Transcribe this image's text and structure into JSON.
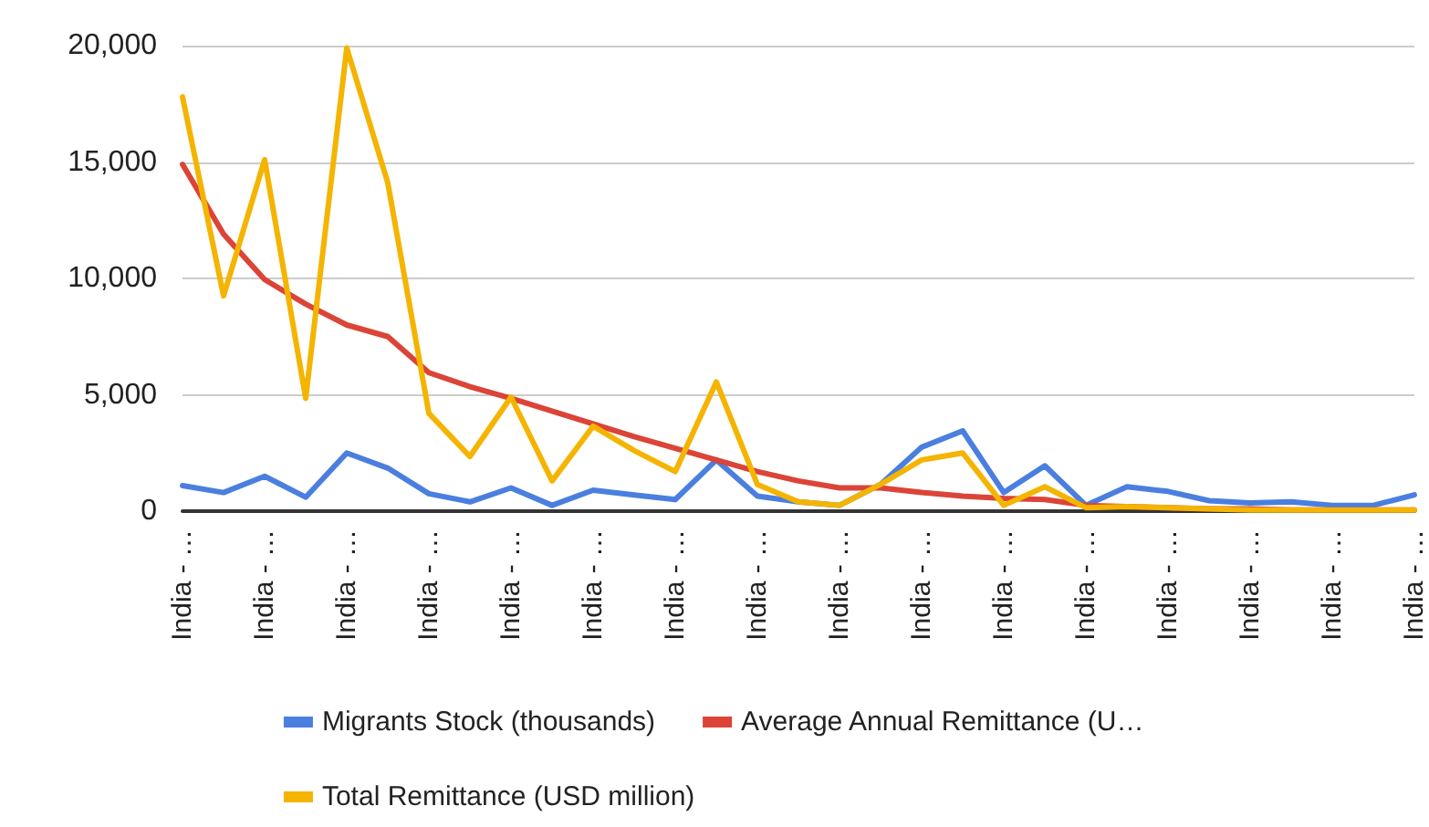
{
  "chart_data": {
    "type": "line",
    "categories": [
      "India - …",
      null,
      "India - …",
      null,
      "India - …",
      null,
      "India - …",
      null,
      "India - …",
      null,
      "India - …",
      null,
      "India - …",
      null,
      "India - …",
      null,
      "India - …",
      null,
      "India - …",
      null,
      "India - …",
      null,
      "India - …",
      null,
      "India - …",
      null,
      "India - …",
      null,
      "India - …",
      null,
      "India - …"
    ],
    "series": [
      {
        "name": "Migrants Stock (thousands)",
        "color": "#4a7fe0",
        "values": [
          1100,
          800,
          1500,
          600,
          2500,
          1850,
          750,
          400,
          1000,
          250,
          900,
          700,
          500,
          2200,
          650,
          400,
          250,
          1150,
          2750,
          3450,
          800,
          1950,
          250,
          1050,
          850,
          450,
          350,
          400,
          250,
          250,
          700
        ]
      },
      {
        "name": "Average Annual Remittance (U…",
        "color": "#db4437",
        "values": [
          14900,
          11900,
          9950,
          8900,
          8000,
          7500,
          5950,
          5350,
          4850,
          4300,
          3750,
          3200,
          2700,
          2200,
          1700,
          1300,
          1000,
          1000,
          800,
          650,
          550,
          500,
          250,
          200,
          150,
          100,
          100,
          50,
          50,
          50,
          50
        ]
      },
      {
        "name": "Total Remittance (USD million)",
        "color": "#f4b400",
        "values": [
          17800,
          9250,
          15100,
          4850,
          19900,
          14100,
          4200,
          2350,
          4900,
          1300,
          3650,
          2600,
          1700,
          5550,
          1150,
          400,
          250,
          1150,
          2200,
          2500,
          250,
          1050,
          150,
          200,
          150,
          100,
          50,
          50,
          50,
          50,
          50
        ]
      }
    ],
    "ylim": [
      0,
      20000
    ],
    "yticks": [
      {
        "value": 0,
        "label": "0"
      },
      {
        "value": 5000,
        "label": "5,000"
      },
      {
        "value": 10000,
        "label": "10,000"
      },
      {
        "value": 15000,
        "label": "15,000"
      },
      {
        "value": 20000,
        "label": "20,000"
      }
    ],
    "grid": "y",
    "legend": "bottom",
    "marker": "none",
    "line_style": "solid"
  }
}
